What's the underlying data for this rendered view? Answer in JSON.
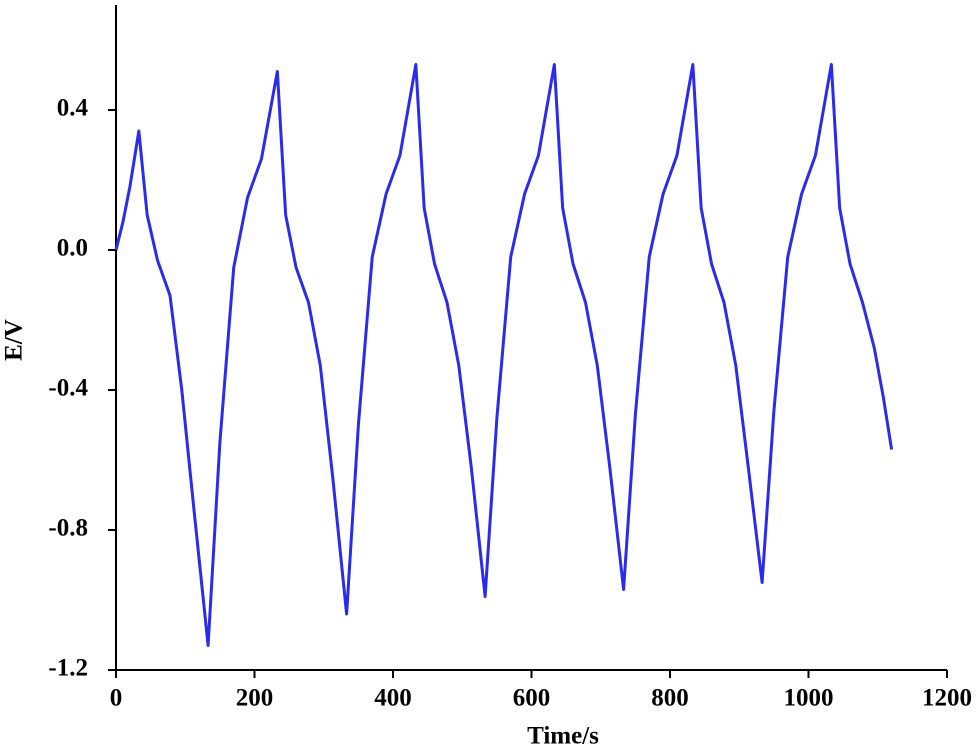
{
  "chart_data": {
    "type": "line",
    "xlabel": "Time/s",
    "ylabel": "E/V",
    "xlim": [
      0,
      1200
    ],
    "xticks": [
      0,
      200,
      400,
      600,
      800,
      1000,
      1200
    ],
    "ylim": [
      -1.2,
      0.7
    ],
    "yticks": [
      -1.2,
      -0.8,
      -0.4,
      {
        "value": 0,
        "label": "0.0"
      },
      0.4
    ],
    "grid": false,
    "series": [
      {
        "name": "E",
        "color": "#2b2bef",
        "x": [
          0,
          10,
          20,
          33,
          45,
          60,
          78,
          95,
          113,
          133,
          150,
          170,
          190,
          210,
          233,
          245,
          260,
          278,
          295,
          313,
          333,
          350,
          370,
          390,
          410,
          433,
          445,
          460,
          478,
          495,
          513,
          533,
          550,
          570,
          590,
          610,
          633,
          645,
          660,
          678,
          695,
          713,
          733,
          750,
          770,
          790,
          810,
          833,
          845,
          860,
          878,
          895,
          913,
          933,
          950,
          970,
          990,
          1010,
          1033,
          1045,
          1060,
          1078,
          1095,
          1108,
          1120
        ],
        "values": [
          0,
          0.08,
          0.18,
          0.34,
          0.1,
          -0.03,
          -0.13,
          -0.4,
          -0.75,
          -1.13,
          -0.55,
          -0.05,
          0.15,
          0.26,
          0.51,
          0.1,
          -0.05,
          -0.15,
          -0.33,
          -0.65,
          -1.04,
          -0.5,
          -0.02,
          0.16,
          0.27,
          0.53,
          0.12,
          -0.04,
          -0.15,
          -0.33,
          -0.62,
          -0.99,
          -0.48,
          -0.02,
          0.16,
          0.27,
          0.53,
          0.12,
          -0.04,
          -0.15,
          -0.33,
          -0.62,
          -0.97,
          -0.47,
          -0.02,
          0.16,
          0.27,
          0.53,
          0.12,
          -0.04,
          -0.15,
          -0.33,
          -0.62,
          -0.95,
          -0.46,
          -0.02,
          0.16,
          0.27,
          0.53,
          0.12,
          -0.04,
          -0.15,
          -0.28,
          -0.42,
          -0.57
        ]
      }
    ]
  }
}
